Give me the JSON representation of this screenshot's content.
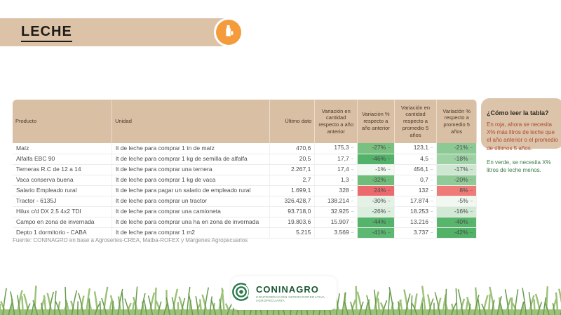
{
  "header": {
    "title": "LECHE",
    "icon": "milk-bottle-icon"
  },
  "colors": {
    "banner_tan": "#dcc3a8",
    "table_header_tan": "#d9c0a5",
    "accent_orange": "#f49c3c",
    "legend_red": "#ad4a31",
    "legend_green": "#3d7c45",
    "grass_light": "#9cc178",
    "grass_dark": "#679a4c",
    "logo_green": "#2b7a4b"
  },
  "table": {
    "headers": {
      "producto": "Producto",
      "unidad": "Unidad",
      "ultimo_dato": "Último dato",
      "var_cant_anio": "Variación en cantidad respecto a año anterior",
      "var_pct_anio": "Variación % respecto a año anterior",
      "var_cant_prom": "Variación en cantidad respecto a promedio 5 años",
      "var_pct_prom": "Variación % respecto a promedio 5 años"
    },
    "rows": [
      {
        "producto": "Maíz",
        "unidad": "lt de leche para comprar 1 tn de maíz",
        "ultimo_dato": "470,6",
        "var_cant_anio": "175,3",
        "var_pct_anio": "-27%",
        "var_cant_prom": "123,1",
        "var_pct_prom": "-21%",
        "color_pct_anio": "#79c181",
        "color_pct_prom": "#8cc994"
      },
      {
        "producto": "Alfalfa EBC 90",
        "unidad": "lt de leche para comprar 1 kg de semilla de alfalfa",
        "ultimo_dato": "20,5",
        "var_cant_anio": "17,7",
        "var_pct_anio": "-46%",
        "var_cant_prom": "4,5",
        "var_pct_prom": "-18%",
        "color_pct_anio": "#52b269",
        "color_pct_prom": "#9dd2a4"
      },
      {
        "producto": "Terneras R.C de 12 a 14",
        "unidad": "lt de leche para comprar una ternera",
        "ultimo_dato": "2.267,1",
        "var_cant_anio": "17,4",
        "var_pct_anio": "-1%",
        "var_cant_prom": "456,1",
        "var_pct_prom": "-17%",
        "color_pct_anio": "#f2f8f2",
        "color_pct_prom": "#cde7d1"
      },
      {
        "producto": "Vaca conserva buena",
        "unidad": "lt de leche para comprar 1 kg de vaca",
        "ultimo_dato": "2,7",
        "var_cant_anio": "1,3",
        "var_pct_anio": "-32%",
        "var_cant_prom": "0,7",
        "var_pct_prom": "-20%",
        "color_pct_anio": "#6fbd79",
        "color_pct_prom": "#90cb97"
      },
      {
        "producto": "Salario Empleado rural",
        "unidad": "lt de leche para pagar un salario de empleado rural",
        "ultimo_dato": "1.699,1",
        "var_cant_anio": "328",
        "var_pct_anio": "24%",
        "var_cant_prom": "132",
        "var_pct_prom": "8%",
        "color_pct_anio": "#ec6a6e",
        "color_pct_prom": "#ee7b78"
      },
      {
        "producto": "Tractor - 6135J",
        "unidad": "lt de leche para comprar un tractor",
        "ultimo_dato": "326.428,7",
        "var_cant_anio": "138.214",
        "var_pct_anio": "-30%",
        "var_cant_prom": "17.874",
        "var_pct_prom": "-5%",
        "color_pct_anio": "#e4f1e5",
        "color_pct_prom": "#f0f8f0"
      },
      {
        "producto": "Hilux c/d DX 2.5 4x2 TDI",
        "unidad": "lt de leche para comprar una camioneta",
        "ultimo_dato": "93.718,0",
        "var_cant_anio": "32.925",
        "var_pct_anio": "-26%",
        "var_cant_prom": "18.253",
        "var_pct_prom": "-16%",
        "color_pct_anio": "#dceede",
        "color_pct_prom": "#d2e9d5"
      },
      {
        "producto": "Campo en zona de invernada",
        "unidad": "lt de leche para comprar una ha en zona de invernada",
        "ultimo_dato": "19.803,6",
        "var_cant_anio": "15.907",
        "var_pct_anio": "-44%",
        "var_cant_prom": "13.216",
        "var_pct_prom": "-40%",
        "color_pct_anio": "#55b46b",
        "color_pct_prom": "#58b66c"
      },
      {
        "producto": "Depto 1 dormitorio - CABA",
        "unidad": "lt de leche para comprar 1 m2",
        "ultimo_dato": "5.215",
        "var_cant_anio": "3.569",
        "var_pct_anio": "-41%",
        "var_cant_prom": "3.737",
        "var_pct_prom": "-42%",
        "color_pct_anio": "#5cb872",
        "color_pct_prom": "#52b268"
      }
    ]
  },
  "legend": {
    "title": "¿Cómo leer la tabla?",
    "red_text": "En roja, ahora se necesita X% más litros de leche que el año anterior o el promedio de últimos 5 años.",
    "green_text": "En verde, se necesita X% litros de leche menos."
  },
  "footer": {
    "source": "Fuente: CONINAGRO en base a Agroseries-CREA, Matba-ROFEX y Márgenes Agropecuarios",
    "logo_name": "CONINAGRO",
    "logo_subtitle": "CONFEDERACIÓN INTERCOOPERATIVA AGROPECUARIA",
    "logo_icon": "coninagro-emblem-icon"
  }
}
